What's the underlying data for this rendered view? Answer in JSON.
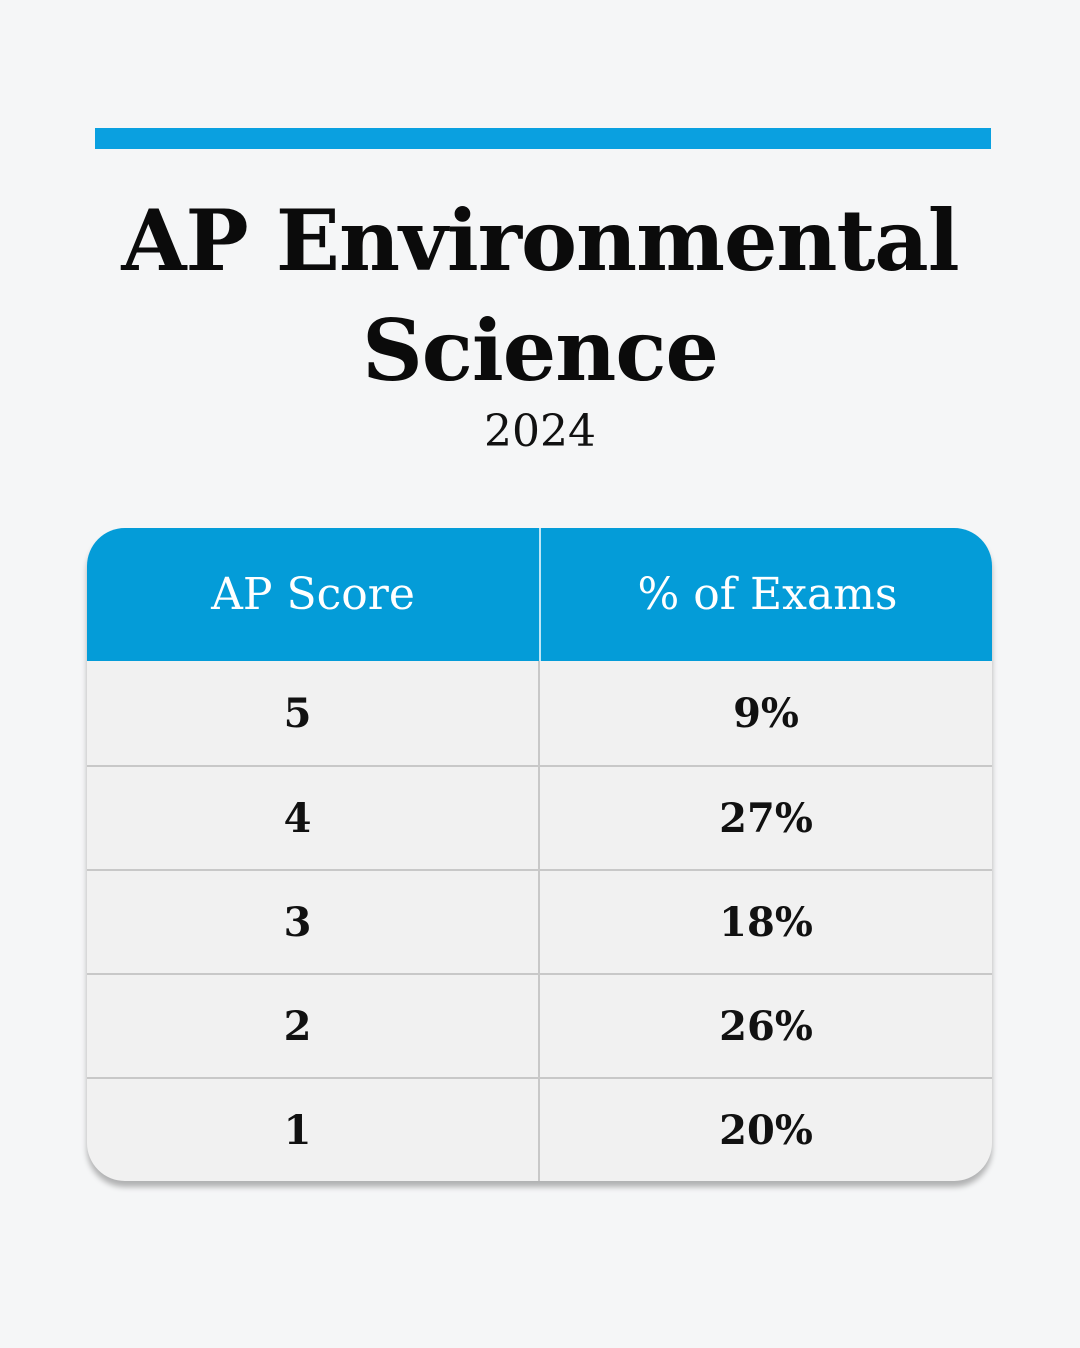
{
  "title_line1": "AP Environmental",
  "title_line2": "Science",
  "year": "2024",
  "colors": {
    "accent": "#049cd8",
    "background": "#f5f6f7",
    "row": "#f1f1f1"
  },
  "chart_data": {
    "type": "table",
    "columns": [
      "AP Score",
      "% of Exams"
    ],
    "rows": [
      {
        "score": "5",
        "percent": "9%"
      },
      {
        "score": "4",
        "percent": "27%"
      },
      {
        "score": "3",
        "percent": "18%"
      },
      {
        "score": "2",
        "percent": "26%"
      },
      {
        "score": "1",
        "percent": "20%"
      }
    ]
  }
}
